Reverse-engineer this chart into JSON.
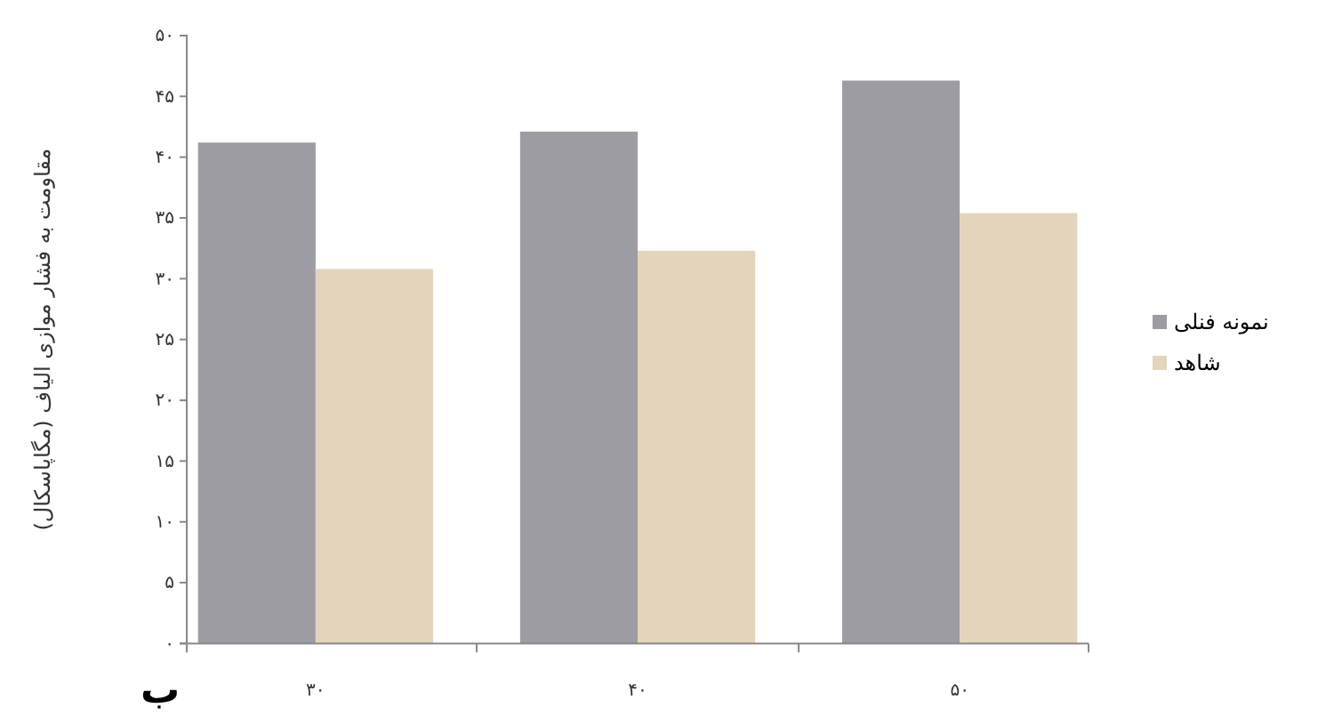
{
  "chart_data": {
    "type": "bar",
    "ylabel": "مقاومت به فشار موازی الیاف (مگاپاسکال)",
    "categories": [
      "۳۰",
      "۴۰",
      "۵۰"
    ],
    "series": [
      {
        "name": "نمونه فنلی",
        "color": "#9c9ca2",
        "values": [
          41.2,
          42.1,
          46.3
        ]
      },
      {
        "name": "شاهد",
        "color": "#e2d5bb",
        "values": [
          30.8,
          32.3,
          35.4
        ]
      }
    ],
    "ylim": [
      0,
      50
    ],
    "yticks": [
      {
        "value": 0,
        "label": "۰"
      },
      {
        "value": 5,
        "label": "۵"
      },
      {
        "value": 10,
        "label": "۱۰"
      },
      {
        "value": 15,
        "label": "۱۵"
      },
      {
        "value": 20,
        "label": "۲۰"
      },
      {
        "value": 25,
        "label": "۲۵"
      },
      {
        "value": 30,
        "label": "۳۰"
      },
      {
        "value": 35,
        "label": "۳۵"
      },
      {
        "value": 40,
        "label": "۴۰"
      },
      {
        "value": 45,
        "label": "۴۵"
      },
      {
        "value": 50,
        "label": "۵۰"
      }
    ],
    "legend": "right",
    "annotations": [
      "ب"
    ]
  }
}
